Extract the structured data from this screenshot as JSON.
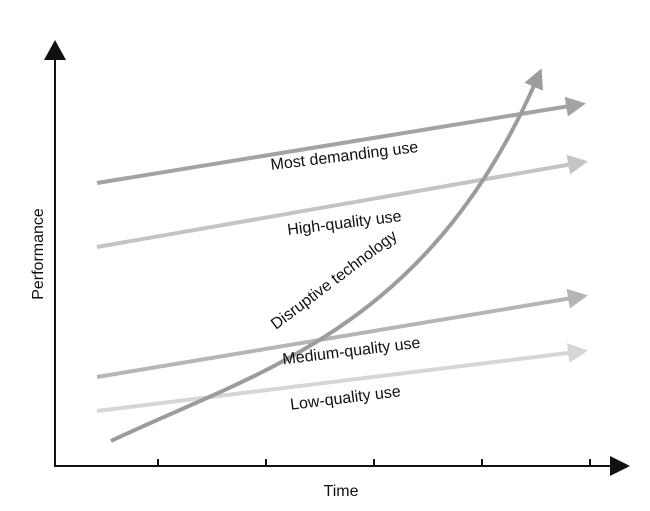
{
  "diagram": {
    "xlabel": "Time",
    "ylabel": "Performance",
    "colors": {
      "axis": "#111111",
      "most_demanding": "#a3a3a3",
      "high_quality": "#c4c4c4",
      "medium_quality": "#b5b5b5",
      "low_quality": "#d6d6d6",
      "disruptive": "#9c9c9c"
    },
    "trajectories": [
      {
        "label": "Most demanding use"
      },
      {
        "label": "High-quality use"
      },
      {
        "label": "Medium-quality use"
      },
      {
        "label": "Low-quality use"
      }
    ],
    "curve_label": "Disruptive technology"
  }
}
